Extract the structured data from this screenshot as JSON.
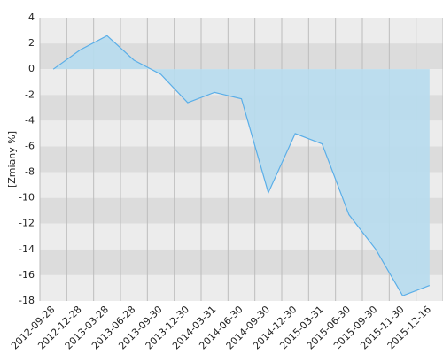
{
  "chart_data": {
    "type": "area",
    "y_label": "[Zmiany %]",
    "categories": [
      "2012-09-28",
      "2012-12-28",
      "2013-03-28",
      "2013-06-28",
      "2013-09-30",
      "2013-12-30",
      "2014-03-31",
      "2014-06-30",
      "2014-09-30",
      "2014-12-30",
      "2015-03-31",
      "2015-06-30",
      "2015-09-30",
      "2015-11-30",
      "2015-12-16"
    ],
    "values": [
      0,
      1.5,
      2.6,
      0.7,
      -0.4,
      -2.6,
      -1.8,
      -2.3,
      -9.6,
      -5.0,
      -5.8,
      -11.3,
      -14.0,
      -17.6,
      -16.8
    ],
    "color": "#5aaee8",
    "fill": "#b7dcee",
    "ylim": [
      -18,
      4
    ],
    "yticks": [
      4,
      2,
      0,
      -2,
      -4,
      -6,
      -8,
      -10,
      -12,
      -14,
      -16,
      -18
    ]
  }
}
